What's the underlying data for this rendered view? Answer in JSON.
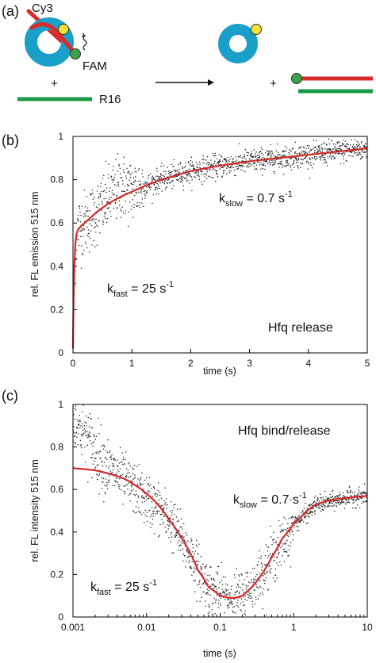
{
  "panel_a": {
    "letter": "(a)",
    "labels": {
      "cy3": "Cy3",
      "fam": "FAM",
      "plus1": "+",
      "r16": "R16",
      "plus2": "+"
    },
    "colors": {
      "hfq": "#1a9fc9",
      "rna": "#d92b2b",
      "r16": "#1b9a45",
      "cy3": "#f2e33a",
      "fam": "#3aa34a"
    }
  },
  "chart_data": [
    {
      "id": "b",
      "letter": "(b)",
      "type": "scatter",
      "xscale": "linear",
      "xlim": [
        0,
        5
      ],
      "ylim": [
        0,
        1
      ],
      "xticks": [
        0,
        1,
        2,
        3,
        4,
        5
      ],
      "xtick_labels": [
        "0",
        "1",
        "2",
        "3",
        "4",
        "5"
      ],
      "yticks": [
        0,
        0.2,
        0.4,
        0.6,
        0.8,
        1
      ],
      "ytick_labels": [
        "0",
        "0.2",
        "0.4",
        "0.6",
        "0.8",
        "1"
      ],
      "xlabel": "time (s)",
      "ylabel": "rel. FL emission 515 nm",
      "fit_color": "#d42a2a",
      "fit": {
        "x": [
          0,
          0.01,
          0.02,
          0.03,
          0.04,
          0.05,
          0.06,
          0.08,
          0.1,
          0.12,
          0.15,
          0.2,
          0.3,
          0.4,
          0.5,
          0.6,
          0.8,
          1.0,
          1.25,
          1.5,
          1.75,
          2.0,
          2.5,
          3.0,
          3.5,
          4.0,
          4.5,
          5.0
        ],
        "y": [
          0.02,
          0.24,
          0.37,
          0.45,
          0.5,
          0.53,
          0.55,
          0.565,
          0.575,
          0.58,
          0.59,
          0.6,
          0.625,
          0.65,
          0.67,
          0.69,
          0.72,
          0.745,
          0.775,
          0.8,
          0.82,
          0.84,
          0.865,
          0.885,
          0.9,
          0.915,
          0.93,
          0.945
        ]
      },
      "scatter_trend": {
        "x": [
          0,
          0.05,
          0.1,
          0.15,
          0.2,
          0.3,
          0.4,
          0.5,
          0.6,
          0.7,
          0.8,
          0.9,
          1.0,
          1.5,
          2.0,
          2.5,
          3.0,
          3.5,
          4.0,
          4.5,
          5.0
        ],
        "y": [
          0.1,
          0.52,
          0.58,
          0.59,
          0.6,
          0.62,
          0.65,
          0.68,
          0.71,
          0.74,
          0.77,
          0.76,
          0.75,
          0.8,
          0.84,
          0.865,
          0.885,
          0.9,
          0.915,
          0.93,
          0.945
        ]
      },
      "annotations": {
        "kslow": {
          "k": "k",
          "sub": "slow",
          "eq": " = 0.7 s",
          "sup": "-1"
        },
        "kfast": {
          "k": "k",
          "sub": "fast",
          "eq": " = 25 s",
          "sup": "-1"
        },
        "label": "Hfq release"
      }
    },
    {
      "id": "c",
      "letter": "(c)",
      "type": "scatter",
      "xscale": "log",
      "xlim": [
        0.001,
        10
      ],
      "ylim": [
        0,
        1
      ],
      "xticks": [
        0.001,
        0.01,
        0.1,
        1,
        10
      ],
      "xtick_labels": [
        "0.001",
        "0.01",
        "0.1",
        "1",
        "10"
      ],
      "yticks": [
        0,
        0.2,
        0.4,
        0.6,
        0.8,
        1
      ],
      "ytick_labels": [
        "0",
        "0.2",
        "0.4",
        "0.6",
        "0.8",
        "1"
      ],
      "xlabel": "time (s)",
      "ylabel": "rel. FL intensity 515 nm",
      "fit_color": "#d42a2a",
      "fit": {
        "x": [
          0.001,
          0.002,
          0.003,
          0.005,
          0.007,
          0.01,
          0.015,
          0.02,
          0.03,
          0.05,
          0.07,
          0.1,
          0.13,
          0.16,
          0.2,
          0.25,
          0.3,
          0.4,
          0.5,
          0.7,
          1.0,
          1.5,
          2.0,
          3.0,
          5.0,
          7.0,
          10.0
        ],
        "y": [
          0.7,
          0.69,
          0.675,
          0.65,
          0.62,
          0.58,
          0.52,
          0.46,
          0.37,
          0.22,
          0.14,
          0.1,
          0.09,
          0.09,
          0.1,
          0.13,
          0.16,
          0.22,
          0.28,
          0.37,
          0.44,
          0.5,
          0.53,
          0.55,
          0.56,
          0.565,
          0.57
        ]
      },
      "scatter_trend": {
        "x": [
          0.001,
          0.0015,
          0.002,
          0.003,
          0.005,
          0.007,
          0.01,
          0.02,
          0.03,
          0.05,
          0.07,
          0.1,
          0.15,
          0.2,
          0.3,
          0.5,
          1.0,
          2.0,
          5.0,
          10.0
        ],
        "y": [
          0.92,
          0.86,
          0.78,
          0.7,
          0.64,
          0.6,
          0.55,
          0.46,
          0.36,
          0.22,
          0.14,
          0.1,
          0.09,
          0.1,
          0.16,
          0.28,
          0.44,
          0.53,
          0.56,
          0.57
        ]
      },
      "annotations": {
        "kslow": {
          "k": "k",
          "sub": "slow",
          "eq": " = 0.7 s",
          "sup": "-1"
        },
        "kfast": {
          "k": "k",
          "sub": "fast",
          "eq": " = 25 s",
          "sup": "-1"
        },
        "label": "Hfq bind/release"
      }
    }
  ]
}
